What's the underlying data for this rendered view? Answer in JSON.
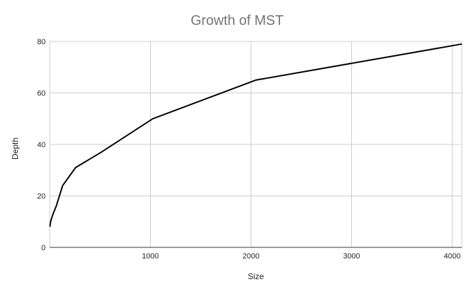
{
  "chart_data": {
    "type": "line",
    "title": "Growth of MST",
    "xlabel": "Size",
    "ylabel": "Depth",
    "xlim": [
      0,
      4096
    ],
    "ylim": [
      0,
      80
    ],
    "x_ticks": [
      1000,
      2000,
      3000,
      4000
    ],
    "y_ticks": [
      0,
      20,
      40,
      60,
      80
    ],
    "grid": true,
    "legend": "none",
    "series": [
      {
        "color": "#000000",
        "x": [
          2,
          4,
          8,
          16,
          32,
          64,
          128,
          256,
          512,
          1024,
          2048,
          4096
        ],
        "y": [
          8,
          9,
          10,
          11,
          13,
          16,
          24,
          31,
          37,
          50,
          65,
          79
        ]
      }
    ]
  }
}
